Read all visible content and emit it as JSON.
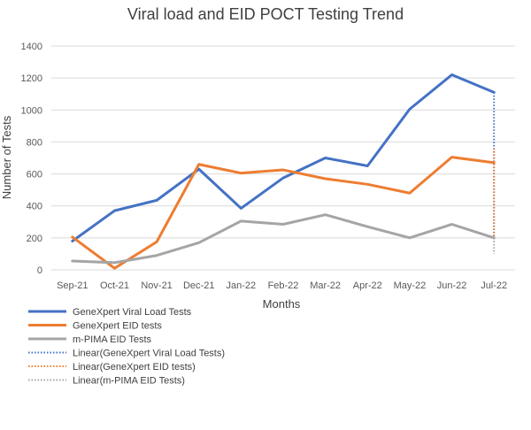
{
  "chart_data": {
    "type": "line",
    "title": "Viral load and EID POCT Testing Trend",
    "xlabel": "Months",
    "ylabel": "Number of Tests",
    "ylim": [
      0,
      1400
    ],
    "yticks": [
      0,
      200,
      400,
      600,
      800,
      1000,
      1200,
      1400
    ],
    "grid": true,
    "legend_position": "bottom-left",
    "categories": [
      "Sep-21",
      "Oct-21",
      "Nov-21",
      "Dec-21",
      "Jan-22",
      "Feb-22",
      "Mar-22",
      "Apr-22",
      "May-22",
      "Jun-22",
      "Jul-22"
    ],
    "series": [
      {
        "name": "GeneXpert Viral Load Tests",
        "color": "#4472C4",
        "values": [
          180,
          370,
          435,
          630,
          385,
          575,
          700,
          650,
          1005,
          1220,
          1110
        ]
      },
      {
        "name": "GeneXpert EID tests",
        "color": "#ED7D31",
        "values": [
          205,
          10,
          175,
          660,
          605,
          625,
          570,
          535,
          480,
          705,
          670
        ]
      },
      {
        "name": "m-PIMA EID Tests",
        "color": "#A5A5A5",
        "values": [
          55,
          45,
          90,
          170,
          305,
          285,
          345,
          270,
          200,
          285,
          200
        ]
      }
    ],
    "trendlines": [
      {
        "name": "Linear(GeneXpert Viral Load Tests)",
        "color": "#4472C4",
        "from": 1110,
        "to": 180
      },
      {
        "name": "Linear(GeneXpert EID tests)",
        "color": "#ED7D31",
        "from": 760,
        "to": 200
      },
      {
        "name": "Linear(m-PIMA EID Tests)",
        "color": "#A5A5A5",
        "from": 200,
        "to": 100
      }
    ]
  }
}
